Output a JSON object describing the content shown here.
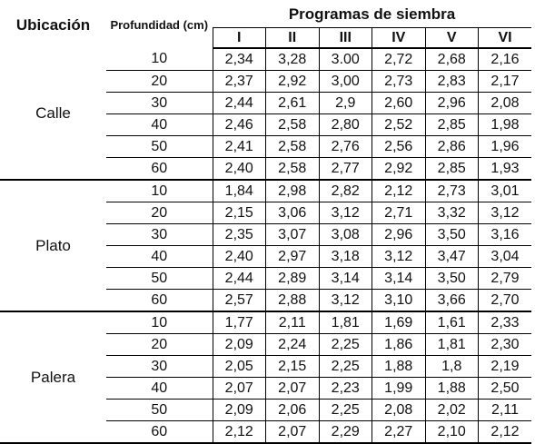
{
  "header": {
    "location": "Ubicación",
    "depth": "Profundidad (cm)",
    "programs": "Programas de siembra",
    "columns": [
      "I",
      "II",
      "III",
      "IV",
      "V",
      "VI"
    ]
  },
  "groups": [
    {
      "name": "Calle",
      "rows": [
        {
          "depth": 10,
          "values": [
            "2,34",
            "3,28",
            "3.00",
            "2,72",
            "2,68",
            "2,16"
          ]
        },
        {
          "depth": 20,
          "values": [
            "2,37",
            "2,92",
            "3,00",
            "2,73",
            "2,83",
            "2,17"
          ]
        },
        {
          "depth": 30,
          "values": [
            "2,44",
            "2,61",
            "2,9",
            "2,60",
            "2,96",
            "2,08"
          ]
        },
        {
          "depth": 40,
          "values": [
            "2,46",
            "2,58",
            "2,80",
            "2,52",
            "2,85",
            "1,98"
          ]
        },
        {
          "depth": 50,
          "values": [
            "2,41",
            "2,58",
            "2,76",
            "2,56",
            "2,86",
            "1,96"
          ]
        },
        {
          "depth": 60,
          "values": [
            "2,40",
            "2,58",
            "2,77",
            "2,92",
            "2,85",
            "1,93"
          ]
        }
      ]
    },
    {
      "name": "Plato",
      "rows": [
        {
          "depth": 10,
          "values": [
            "1,84",
            "2,98",
            "2,82",
            "2,12",
            "2,73",
            "3,01"
          ]
        },
        {
          "depth": 20,
          "values": [
            "2,15",
            "3,06",
            "3,12",
            "2,71",
            "3,32",
            "3,12"
          ]
        },
        {
          "depth": 30,
          "values": [
            "2,35",
            "3,07",
            "3,08",
            "2,96",
            "3,50",
            "3,16"
          ]
        },
        {
          "depth": 40,
          "values": [
            "2,40",
            "2,97",
            "3,18",
            "3,12",
            "3,47",
            "3,04"
          ]
        },
        {
          "depth": 50,
          "values": [
            "2,44",
            "2,89",
            "3,14",
            "3,14",
            "3,50",
            "2,79"
          ]
        },
        {
          "depth": 60,
          "values": [
            "2,57",
            "2,88",
            "3,12",
            "3,10",
            "3,66",
            "2,70"
          ]
        }
      ]
    },
    {
      "name": "Palera",
      "rows": [
        {
          "depth": 10,
          "values": [
            "1,77",
            "2,11",
            "1,81",
            "1,69",
            "1,61",
            "2,33"
          ]
        },
        {
          "depth": 20,
          "values": [
            "2,09",
            "2,24",
            "2,25",
            "1,86",
            "1,81",
            "2,30"
          ]
        },
        {
          "depth": 30,
          "values": [
            "2,05",
            "2,15",
            "2,25",
            "1,88",
            "1,8",
            "2,19"
          ]
        },
        {
          "depth": 40,
          "values": [
            "2,07",
            "2,07",
            "2,23",
            "1,99",
            "1,88",
            "2,50"
          ]
        },
        {
          "depth": 50,
          "values": [
            "2,09",
            "2,06",
            "2,25",
            "2,08",
            "2,02",
            "2,11"
          ]
        },
        {
          "depth": 60,
          "values": [
            "2,12",
            "2,07",
            "2,29",
            "2,27",
            "2,10",
            "2,12"
          ]
        }
      ]
    }
  ]
}
